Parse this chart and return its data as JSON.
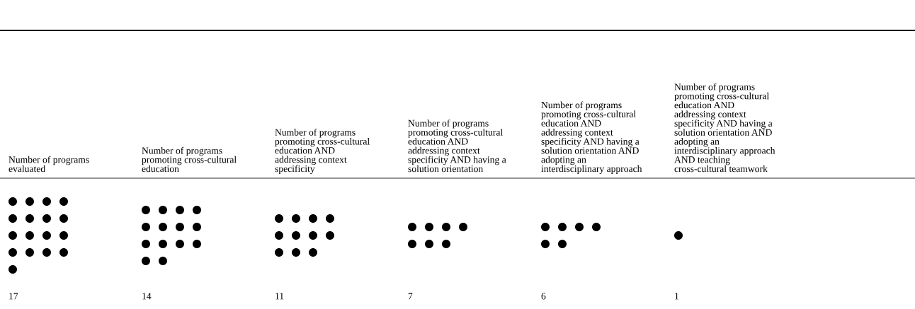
{
  "chart_data": {
    "type": "other",
    "categories": [
      "Number of programs\nevaluated",
      "Number of programs\npromoting cross-cultural\neducation",
      "Number of programs\npromoting cross-cultural\neducation AND\naddressing context\nspecificity",
      "Number of programs\npromoting cross-cultural\neducation AND\naddressing context\nspecificity AND having a\nsolution orientation",
      "Number of programs\npromoting cross-cultural\neducation AND\naddressing context\nspecificity AND having a\nsolution orientation AND\nadopting an\ninterdisciplinary approach",
      "Number of programs\npromoting cross-cultural\neducation AND\naddressing context\nspecificity AND having a\nsolution orientation AND\nadopting an\ninterdisciplinary approach\nAND teaching\ncross-cultural teamwork"
    ],
    "values": [
      17,
      14,
      11,
      7,
      6,
      1
    ],
    "color": "#000000",
    "data_labels": true
  }
}
